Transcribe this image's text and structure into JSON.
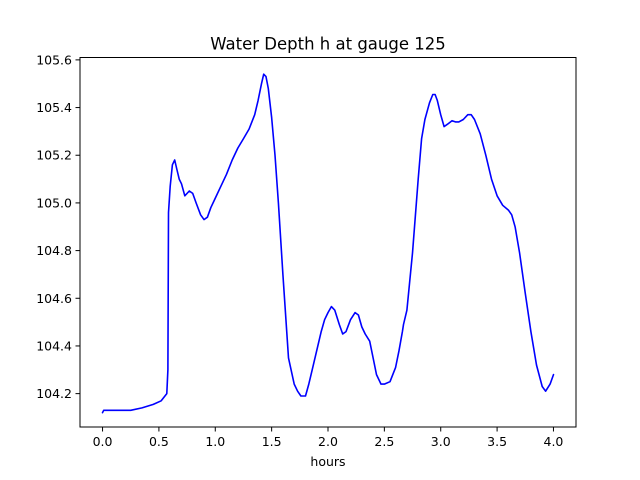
{
  "chart_data": {
    "type": "line",
    "title": "Water Depth h at gauge 125",
    "xlabel": "hours",
    "ylabel": "",
    "xlim": [
      -0.2,
      4.2
    ],
    "ylim": [
      104.06,
      105.61
    ],
    "xticks": [
      0.0,
      0.5,
      1.0,
      1.5,
      2.0,
      2.5,
      3.0,
      3.5,
      4.0
    ],
    "xtick_labels": [
      "0.0",
      "0.5",
      "1.0",
      "1.5",
      "2.0",
      "2.5",
      "3.0",
      "3.5",
      "4.0"
    ],
    "yticks": [
      104.2,
      104.4,
      104.6,
      104.8,
      105.0,
      105.2,
      105.4,
      105.6
    ],
    "ytick_labels": [
      "104.2",
      "104.4",
      "104.6",
      "104.8",
      "105.0",
      "105.2",
      "105.4",
      "105.6"
    ],
    "grid": false,
    "series": [
      {
        "color": "#0000ff",
        "x": [
          0.0,
          0.01,
          0.25,
          0.35,
          0.45,
          0.52,
          0.57,
          0.58,
          0.585,
          0.6,
          0.62,
          0.64,
          0.66,
          0.68,
          0.7,
          0.73,
          0.77,
          0.8,
          0.83,
          0.87,
          0.9,
          0.93,
          0.96,
          1.0,
          1.05,
          1.1,
          1.15,
          1.2,
          1.25,
          1.3,
          1.35,
          1.38,
          1.41,
          1.43,
          1.45,
          1.47,
          1.5,
          1.53,
          1.56,
          1.6,
          1.65,
          1.7,
          1.73,
          1.76,
          1.8,
          1.83,
          1.86,
          1.9,
          1.94,
          1.97,
          2.0,
          2.03,
          2.06,
          2.1,
          2.13,
          2.16,
          2.2,
          2.24,
          2.27,
          2.3,
          2.33,
          2.37,
          2.4,
          2.43,
          2.47,
          2.5,
          2.55,
          2.6,
          2.63,
          2.66,
          2.67,
          2.7,
          2.75,
          2.8,
          2.83,
          2.86,
          2.9,
          2.93,
          2.95,
          2.97,
          3.0,
          3.03,
          3.06,
          3.1,
          3.13,
          3.16,
          3.2,
          3.24,
          3.27,
          3.3,
          3.35,
          3.4,
          3.45,
          3.5,
          3.55,
          3.6,
          3.63,
          3.66,
          3.7,
          3.75,
          3.8,
          3.85,
          3.9,
          3.93,
          3.97,
          4.0
        ],
        "y": [
          104.12,
          104.13,
          104.13,
          104.14,
          104.155,
          104.17,
          104.2,
          104.3,
          104.96,
          105.07,
          105.16,
          105.18,
          105.14,
          105.1,
          105.08,
          105.03,
          105.05,
          105.04,
          105.0,
          104.95,
          104.93,
          104.94,
          104.98,
          105.02,
          105.07,
          105.12,
          105.18,
          105.23,
          105.27,
          105.31,
          105.37,
          105.43,
          105.5,
          105.54,
          105.53,
          105.48,
          105.36,
          105.2,
          105.0,
          104.7,
          104.35,
          104.24,
          104.21,
          104.19,
          104.19,
          104.24,
          104.3,
          104.38,
          104.46,
          104.51,
          104.54,
          104.565,
          104.55,
          104.49,
          104.45,
          104.46,
          104.51,
          104.54,
          104.53,
          104.48,
          104.45,
          104.42,
          104.35,
          104.28,
          104.24,
          104.24,
          104.25,
          104.31,
          104.38,
          104.46,
          104.49,
          104.55,
          104.79,
          105.1,
          105.27,
          105.35,
          105.42,
          105.455,
          105.455,
          105.43,
          105.37,
          105.32,
          105.33,
          105.345,
          105.34,
          105.34,
          105.35,
          105.37,
          105.37,
          105.35,
          105.29,
          105.2,
          105.1,
          105.03,
          104.99,
          104.97,
          104.95,
          104.9,
          104.79,
          104.62,
          104.46,
          104.32,
          104.23,
          104.21,
          104.24,
          104.28
        ]
      }
    ]
  }
}
